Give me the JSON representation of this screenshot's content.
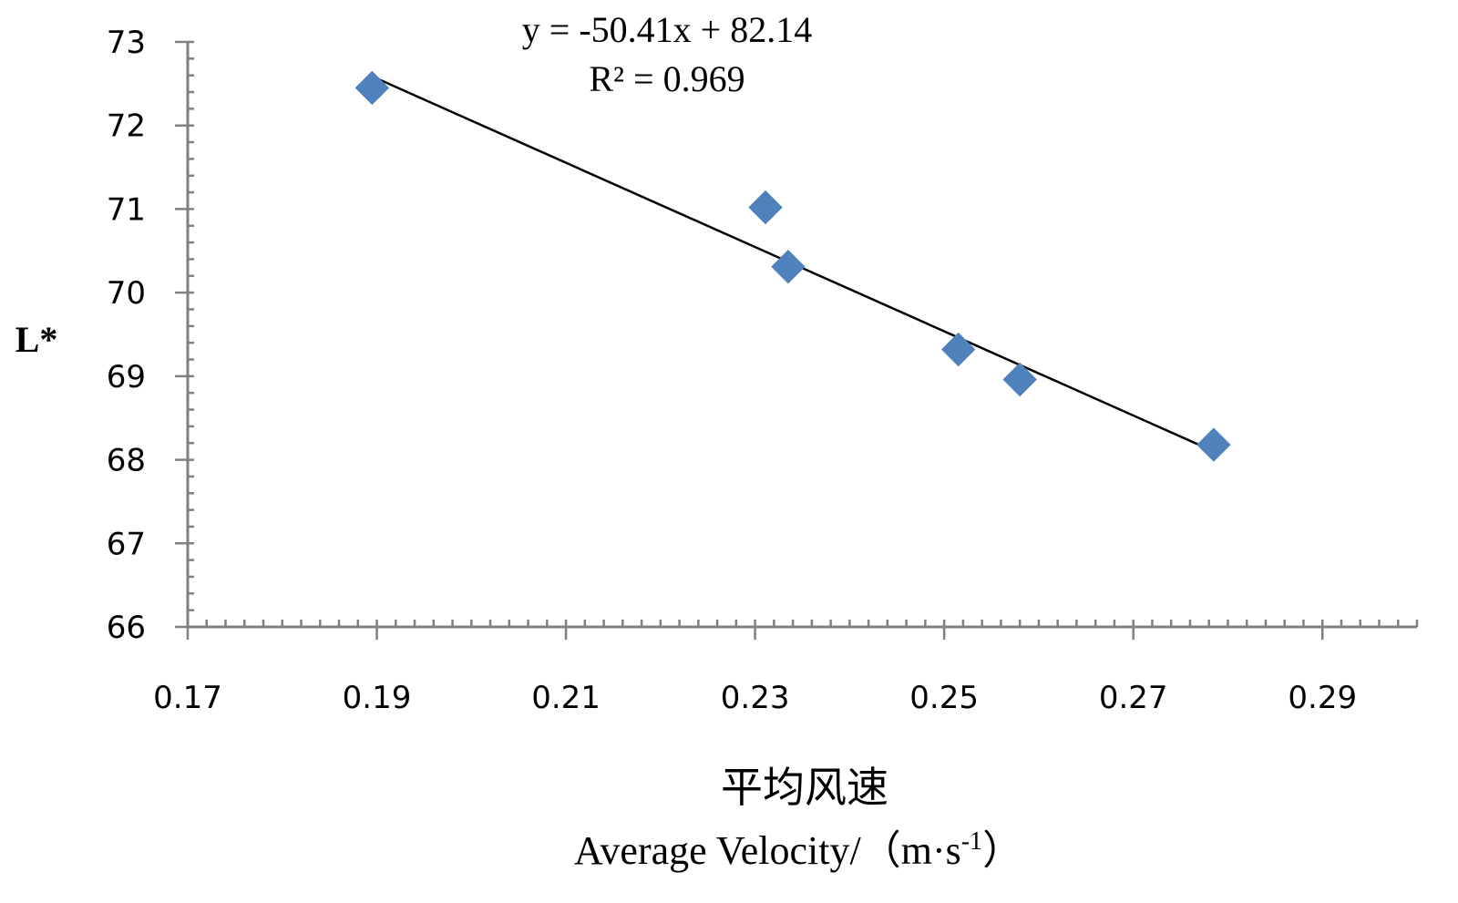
{
  "chart_data": {
    "type": "scatter",
    "title": "",
    "xlabel_cn": "平均风速",
    "xlabel_en": "Average Velocity/（m·s",
    "xlabel_sup": "-1",
    "xlabel_close": "）",
    "ylabel": "L*",
    "xlim": [
      0.17,
      0.3
    ],
    "ylim": [
      66,
      73
    ],
    "xticks": [
      "0.17",
      "0.19",
      "0.21",
      "0.23",
      "0.25",
      "0.27",
      "0.29"
    ],
    "yticks": [
      "66",
      "67",
      "68",
      "69",
      "70",
      "71",
      "72",
      "73"
    ],
    "series": [
      {
        "name": "L*",
        "color": "#4F81BD",
        "marker": "diamond",
        "points": [
          {
            "x": 0.1895,
            "y": 72.45
          },
          {
            "x": 0.2311,
            "y": 71.02
          },
          {
            "x": 0.2335,
            "y": 70.31
          },
          {
            "x": 0.2515,
            "y": 69.32
          },
          {
            "x": 0.258,
            "y": 68.96
          },
          {
            "x": 0.2785,
            "y": 68.18
          }
        ]
      }
    ],
    "trendline": {
      "slope": -50.41,
      "intercept": 82.14,
      "x_range": [
        0.19,
        0.2785
      ],
      "equation": "y = -50.41x + 82.14",
      "r2": "R² = 0.969",
      "color": "#000000"
    }
  }
}
